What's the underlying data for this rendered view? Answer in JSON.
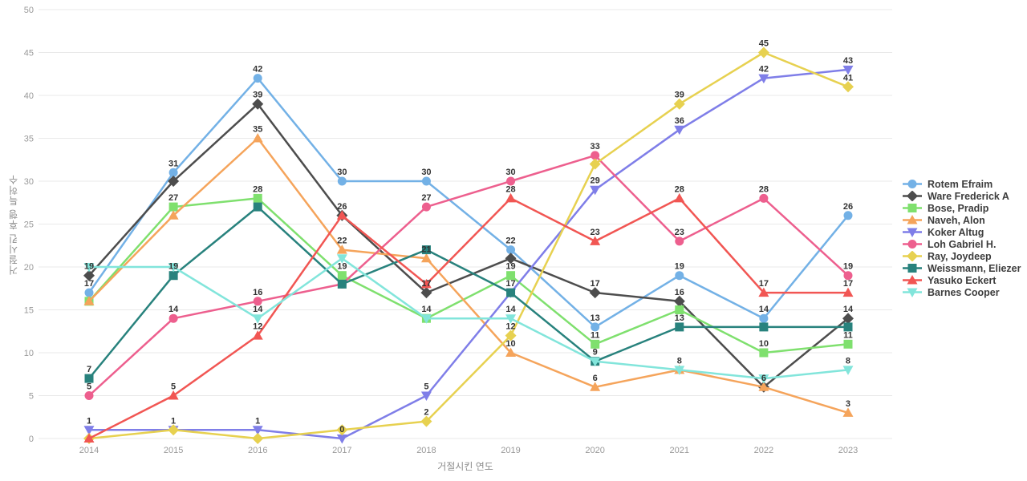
{
  "chart_data": {
    "type": "line",
    "title": "",
    "xlabel": "거절시킨 연도",
    "ylabel": "거절시킨 후행 특허수",
    "x_labels": [
      "2014",
      "2015",
      "2016",
      "2017",
      "2018",
      "2019",
      "2020",
      "2021",
      "2022",
      "2023"
    ],
    "ylim": [
      0,
      50
    ],
    "yticks": [
      0,
      5,
      10,
      15,
      20,
      25,
      30,
      35,
      40,
      45,
      50
    ],
    "grid": true,
    "legend_position": "right-middle",
    "grid_color": "#e9e9e9",
    "tick_color": "#999999",
    "label_color": "#333333",
    "series": [
      {
        "name": "Rotem Efraim",
        "color": "#73b1e6",
        "marker": "circle",
        "values": [
          17,
          31,
          42,
          30,
          30,
          22,
          13,
          19,
          14,
          26
        ]
      },
      {
        "name": "Ware Frederick A",
        "color": "#4d4d4d",
        "marker": "diamond",
        "values": [
          19,
          30,
          39,
          26,
          17,
          21,
          17,
          16,
          6,
          14
        ]
      },
      {
        "name": "Bose, Pradip",
        "color": "#7fe06e",
        "marker": "square",
        "values": [
          16,
          27,
          28,
          19,
          14,
          19,
          11,
          15,
          10,
          11
        ]
      },
      {
        "name": "Naveh, Alon",
        "color": "#f5a45b",
        "marker": "triangle",
        "values": [
          16,
          26,
          35,
          22,
          21,
          10,
          6,
          8,
          6,
          3
        ]
      },
      {
        "name": "Koker Altug",
        "color": "#7f7ee8",
        "marker": "triangle-down",
        "values": [
          1,
          1,
          1,
          0,
          5,
          17,
          29,
          36,
          42,
          43
        ]
      },
      {
        "name": "Loh Gabriel H.",
        "color": "#ed5f8e",
        "marker": "circle",
        "values": [
          5,
          14,
          16,
          18,
          27,
          30,
          33,
          23,
          28,
          19
        ]
      },
      {
        "name": "Ray, Joydeep",
        "color": "#e7d150",
        "marker": "diamond",
        "values": [
          0,
          1,
          0,
          1,
          2,
          12,
          32,
          39,
          45,
          41
        ]
      },
      {
        "name": "Weissmann, Eliezer",
        "color": "#28827d",
        "marker": "square",
        "values": [
          7,
          19,
          27,
          18,
          22,
          17,
          9,
          13,
          13,
          13
        ]
      },
      {
        "name": "Yasuko Eckert",
        "color": "#f15653",
        "marker": "triangle",
        "values": [
          0,
          5,
          12,
          26,
          18,
          28,
          23,
          28,
          17,
          17
        ]
      },
      {
        "name": "Barnes Cooper",
        "color": "#82e5db",
        "marker": "triangle-down",
        "values": [
          20,
          20,
          14,
          21,
          14,
          14,
          9,
          8,
          7,
          8
        ]
      }
    ]
  }
}
